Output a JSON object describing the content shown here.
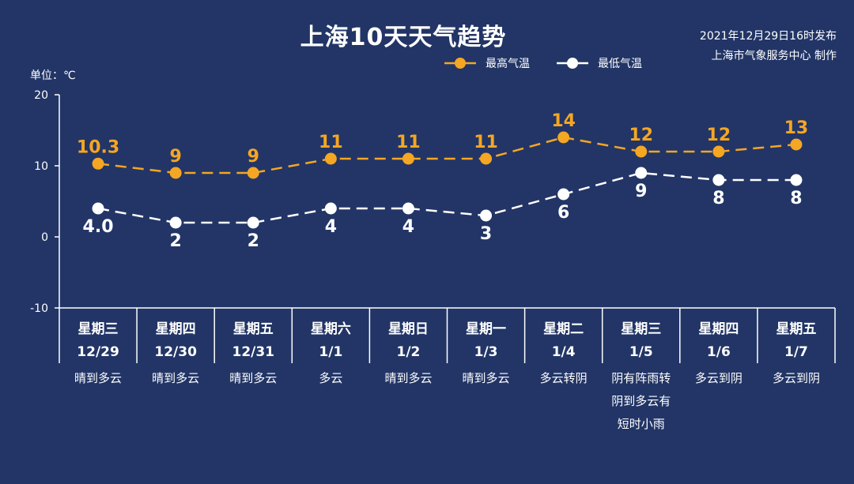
{
  "header": {
    "title": "上海10天天气趋势",
    "publish_line1": "2021年12月29日16时发布",
    "publish_line2": "上海市气象服务中心 制作"
  },
  "colors": {
    "background": "#223566",
    "high": "#f5a623",
    "low": "#ffffff"
  },
  "chart_data": {
    "type": "line",
    "title": "上海10天天气趋势",
    "unit_label": "单位：℃",
    "ylim": [
      -10,
      20
    ],
    "yticks": [
      -10,
      0,
      10,
      20
    ],
    "grid": false,
    "legend_position": "top-right",
    "categories": [
      {
        "weekday": "星期三",
        "date": "12/29",
        "weather": [
          "晴到多云"
        ]
      },
      {
        "weekday": "星期四",
        "date": "12/30",
        "weather": [
          "晴到多云"
        ]
      },
      {
        "weekday": "星期五",
        "date": "12/31",
        "weather": [
          "晴到多云"
        ]
      },
      {
        "weekday": "星期六",
        "date": "1/1",
        "weather": [
          "多云"
        ]
      },
      {
        "weekday": "星期日",
        "date": "1/2",
        "weather": [
          "晴到多云"
        ]
      },
      {
        "weekday": "星期一",
        "date": "1/3",
        "weather": [
          "晴到多云"
        ]
      },
      {
        "weekday": "星期二",
        "date": "1/4",
        "weather": [
          "多云转阴"
        ]
      },
      {
        "weekday": "星期三",
        "date": "1/5",
        "weather": [
          "阴有阵雨转",
          "阴到多云有",
          "短时小雨"
        ]
      },
      {
        "weekday": "星期四",
        "date": "1/6",
        "weather": [
          "多云到阴"
        ]
      },
      {
        "weekday": "星期五",
        "date": "1/7",
        "weather": [
          "多云到阴"
        ]
      }
    ],
    "series": [
      {
        "name": "最高气温",
        "values": [
          10.3,
          9,
          9,
          11,
          11,
          11,
          14,
          12,
          12,
          13
        ],
        "labels": [
          "10.3",
          "9",
          "9",
          "11",
          "11",
          "11",
          "14",
          "12",
          "12",
          "13"
        ]
      },
      {
        "name": "最低气温",
        "values": [
          4.0,
          2,
          2,
          4,
          4,
          3,
          6,
          9,
          8,
          8
        ],
        "labels": [
          "4.0",
          "2",
          "2",
          "4",
          "4",
          "3",
          "6",
          "9",
          "8",
          "8"
        ]
      }
    ]
  }
}
